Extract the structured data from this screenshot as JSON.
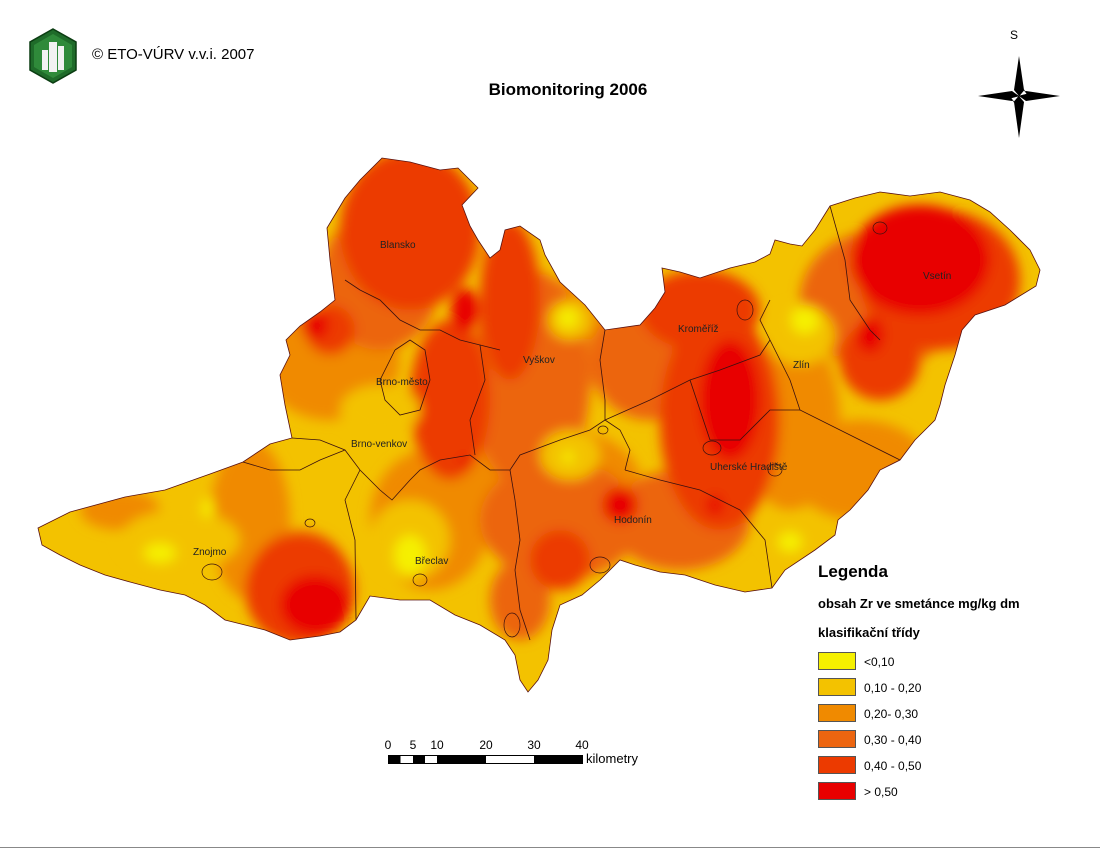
{
  "copyright": "© ETO-VÚRV v.v.i. 2007",
  "title": "Biomonitoring 2006",
  "north_label": "S",
  "legend": {
    "title": "Legenda",
    "subtitle": "obsah Zr ve smetánce mg/kg dm",
    "classes_title": "klasifikační třídy",
    "items": [
      {
        "label": "<0,10",
        "color": "#f5f000"
      },
      {
        "label": "0,10 - 0,20",
        "color": "#f3c200"
      },
      {
        "label": "0,20- 0,30",
        "color": "#f08a00"
      },
      {
        "label": "0,30 - 0,40",
        "color": "#ec6510"
      },
      {
        "label": "0,40 - 0,50",
        "color": "#ec3a00"
      },
      {
        "label": "> 0,50",
        "color": "#e80000"
      }
    ]
  },
  "places": {
    "blansko": "Blansko",
    "brno_mesto": "Brno-město",
    "brno_venkov": "Brno-venkov",
    "vyskov": "Vyškov",
    "kromeriz": "Kroměříž",
    "zlin": "Zlín",
    "vsetin": "Vsetín",
    "uherske_hradiste": "Uherské Hradiště",
    "hodonin": "Hodonín",
    "breclav": "Břeclav",
    "znojmo": "Znojmo"
  },
  "scale": {
    "ticks": [
      "0",
      "5",
      "10",
      "20",
      "30",
      "40"
    ],
    "unit": "kilometry"
  }
}
